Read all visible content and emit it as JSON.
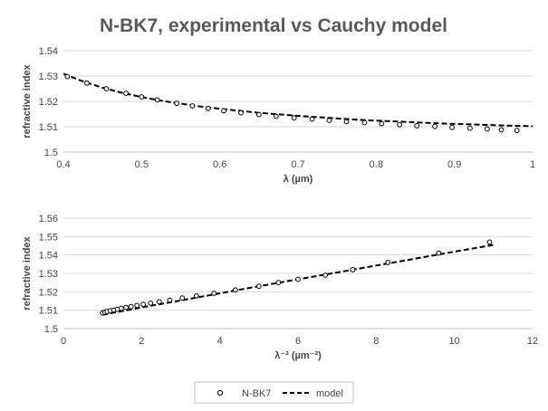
{
  "title": "N-BK7, experimental vs Cauchy model",
  "legend": {
    "position": "bottom",
    "items": [
      {
        "label": "N-BK7",
        "marker": "open-circle"
      },
      {
        "label": "model",
        "marker": "dashed-line"
      }
    ]
  },
  "colors": {
    "title": "#595959",
    "text": "#444444",
    "grid": "#d9d9d9",
    "series": "#000000"
  },
  "chart_data": [
    {
      "type": "scatter",
      "xlabel": "λ (µm)",
      "ylabel": "refractive index",
      "xlim": [
        0.4,
        1.0
      ],
      "ylim": [
        1.5,
        1.54
      ],
      "xticks": [
        0.4,
        0.5,
        0.6,
        0.7,
        0.8,
        0.9,
        1
      ],
      "xtick_labels": [
        "0.4",
        "0.5",
        "0.6",
        "0.7",
        "0.8",
        "0.9",
        "1"
      ],
      "yticks": [
        1.5,
        1.51,
        1.52,
        1.53,
        1.54
      ],
      "ytick_labels": [
        "1.5",
        "1.51",
        "1.52",
        "1.53",
        "1.54"
      ],
      "grid": "horizontal",
      "series": [
        {
          "name": "N-BK7",
          "style": "open-circle",
          "x": [
            0.405,
            0.43,
            0.455,
            0.48,
            0.5,
            0.52,
            0.545,
            0.565,
            0.585,
            0.605,
            0.627,
            0.65,
            0.672,
            0.695,
            0.718,
            0.74,
            0.762,
            0.785,
            0.807,
            0.83,
            0.852,
            0.875,
            0.897,
            0.92,
            0.942,
            0.96,
            0.98
          ],
          "y": [
            1.5298,
            1.5272,
            1.525,
            1.5232,
            1.5218,
            1.5206,
            1.5192,
            1.5182,
            1.5172,
            1.5163,
            1.5155,
            1.5148,
            1.5141,
            1.5135,
            1.513,
            1.5125,
            1.512,
            1.5116,
            1.5112,
            1.5108,
            1.5104,
            1.5101,
            1.5097,
            1.5094,
            1.5091,
            1.5088,
            1.5085
          ]
        },
        {
          "name": "model",
          "style": "dashed-line",
          "x": [
            0.4,
            0.425,
            0.45,
            0.475,
            0.5,
            0.525,
            0.55,
            0.575,
            0.6,
            0.625,
            0.65,
            0.675,
            0.7,
            0.725,
            0.75,
            0.775,
            0.8,
            0.825,
            0.85,
            0.875,
            0.9,
            0.925,
            0.95,
            0.975,
            1.0
          ],
          "y": [
            1.5309,
            1.5279,
            1.5254,
            1.5234,
            1.5217,
            1.5203,
            1.5191,
            1.518,
            1.5171,
            1.5163,
            1.5155,
            1.5149,
            1.5143,
            1.5138,
            1.5133,
            1.5128,
            1.5124,
            1.5121,
            1.5117,
            1.5114,
            1.5111,
            1.5109,
            1.5106,
            1.5104,
            1.5102
          ]
        }
      ]
    },
    {
      "type": "scatter",
      "xlabel": "λ⁻² (µm⁻²)",
      "ylabel": "refractive index",
      "xlim": [
        0,
        12
      ],
      "ylim": [
        1.5,
        1.56
      ],
      "xticks": [
        0,
        2,
        4,
        6,
        8,
        10,
        12
      ],
      "xtick_labels": [
        "0",
        "2",
        "4",
        "6",
        "8",
        "10",
        "12"
      ],
      "yticks": [
        1.5,
        1.51,
        1.52,
        1.53,
        1.54,
        1.55,
        1.56
      ],
      "ytick_labels": [
        "1.5",
        "1.51",
        "1.52",
        "1.53",
        "1.54",
        "1.55",
        "1.56"
      ],
      "grid": "horizontal",
      "series": [
        {
          "name": "N-BK7",
          "style": "open-circle",
          "x": [
            1.0,
            1.06,
            1.12,
            1.2,
            1.29,
            1.38,
            1.48,
            1.6,
            1.73,
            1.88,
            2.04,
            2.23,
            2.45,
            2.72,
            3.04,
            3.4,
            3.85,
            4.4,
            5.0,
            5.5,
            6.0,
            6.7,
            7.4,
            8.3,
            9.6,
            10.9
          ],
          "y": [
            1.5085,
            1.5089,
            1.5093,
            1.5097,
            1.5101,
            1.5105,
            1.511,
            1.5115,
            1.512,
            1.5126,
            1.5132,
            1.5138,
            1.5146,
            1.5155,
            1.5166,
            1.5178,
            1.5192,
            1.521,
            1.523,
            1.525,
            1.5268,
            1.529,
            1.532,
            1.536,
            1.541,
            1.547
          ]
        },
        {
          "name": "model",
          "style": "dashed-line",
          "x": [
            1.0,
            2.0,
            3.0,
            4.0,
            5.0,
            6.0,
            7.0,
            8.0,
            9.0,
            10.0,
            11.0
          ],
          "y": [
            1.5075,
            1.5115,
            1.5153,
            1.5192,
            1.523,
            1.5268,
            1.5305,
            1.5343,
            1.538,
            1.5418,
            1.5455
          ]
        }
      ]
    }
  ]
}
